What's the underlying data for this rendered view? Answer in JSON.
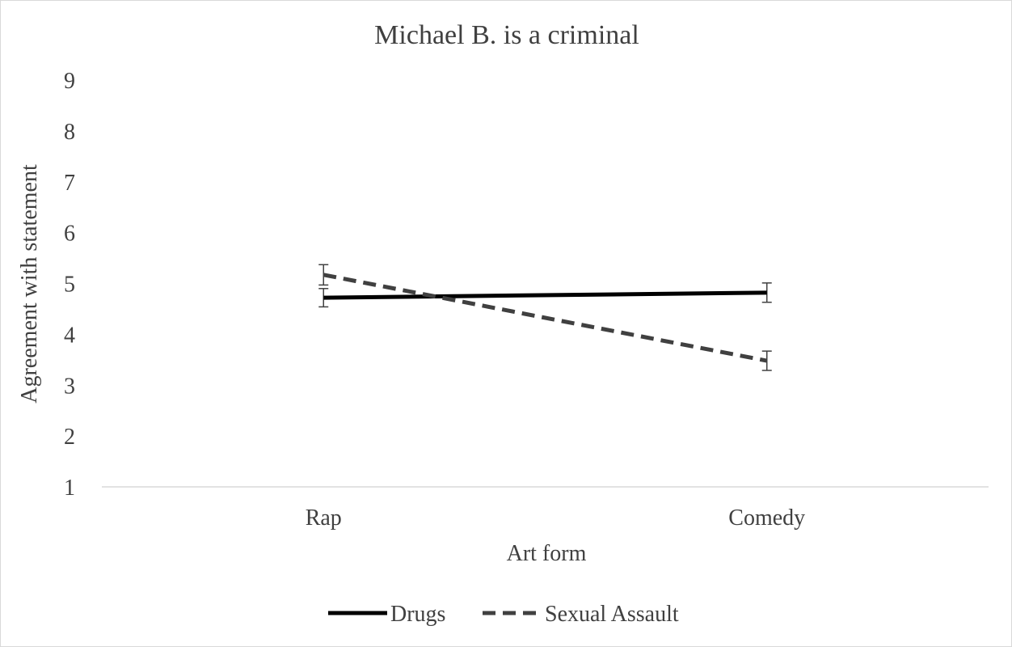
{
  "chart_data": {
    "type": "line",
    "title": "Michael B. is a criminal",
    "xlabel": "Art form",
    "ylabel": "Agreement with statement",
    "categories": [
      "Rap",
      "Comedy"
    ],
    "ylim": [
      1,
      9
    ],
    "yticks": [
      "1",
      "2",
      "3",
      "4",
      "5",
      "6",
      "7",
      "8",
      "9"
    ],
    "grid": false,
    "legend_position": "bottom",
    "series": [
      {
        "name": "Drugs",
        "values": [
          4.72,
          4.82
        ],
        "error": [
          0.18,
          0.19
        ],
        "style": "solid",
        "color": "#000000"
      },
      {
        "name": "Sexual Assault",
        "values": [
          5.17,
          3.48
        ],
        "error": [
          0.2,
          0.19
        ],
        "style": "dashed",
        "color": "#404040"
      }
    ]
  }
}
